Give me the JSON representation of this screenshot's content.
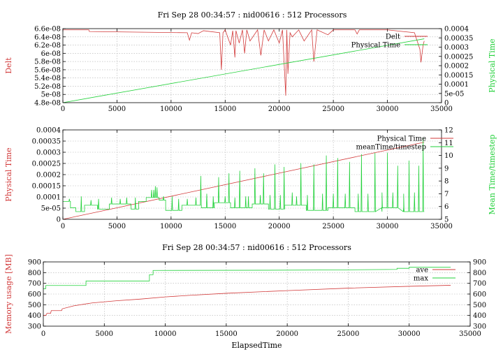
{
  "colors": {
    "red": "#d23a3a",
    "green": "#22d13a",
    "grid": "#b0b0b0"
  },
  "chart_data": [
    {
      "type": "line",
      "title": "Fri Sep 28 00:34:57 : nid00616 : 512 Processors",
      "xlabel": "",
      "ylabel": "Delt",
      "y2label": "Physical Time",
      "xlim": [
        0,
        35000
      ],
      "ylim": [
        4.8e-08,
        6.6e-08
      ],
      "y2lim": [
        0,
        0.0004
      ],
      "xticks": [
        "0",
        "5000",
        "10000",
        "15000",
        "20000",
        "25000",
        "30000",
        "35000"
      ],
      "yticks": [
        "4.8e-08",
        "5e-08",
        "5.2e-08",
        "5.4e-08",
        "5.6e-08",
        "5.8e-08",
        "6e-08",
        "6.2e-08",
        "6.4e-08",
        "6.6e-08"
      ],
      "y2ticks": [
        "0",
        "5e-05",
        "0.0001",
        "0.00015",
        "0.0002",
        "0.00025",
        "0.0003",
        "0.00035",
        "0.0004"
      ],
      "legend_position": "top-right",
      "grid": true,
      "series": [
        {
          "name": "Delt",
          "axis": "left",
          "color": "#d23a3a",
          "x": [
            0,
            2400,
            2450,
            11500,
            11700,
            11900,
            12500,
            13000,
            14500,
            14650,
            14800,
            15000,
            15500,
            15700,
            15900,
            16000,
            16300,
            16600,
            16800,
            17000,
            17300,
            18000,
            18300,
            18600,
            19000,
            19500,
            20000,
            20300,
            20600,
            20700,
            20800,
            21000,
            21200,
            21800,
            22300,
            23000,
            23200,
            23500,
            24500,
            25000,
            27000,
            27200,
            27400,
            30000,
            32500,
            33000,
            33100,
            33200,
            33300,
            33400
          ],
          "y": [
            6.57e-08,
            6.57e-08,
            6.53e-08,
            6.5e-08,
            6.32e-08,
            6.5e-08,
            6.48e-08,
            6.55e-08,
            6.5e-08,
            5.6e-08,
            6.5e-08,
            6.57e-08,
            6.2e-08,
            6.55e-08,
            5.9e-08,
            6.55e-08,
            6.25e-08,
            6.57e-08,
            6e-08,
            6.57e-08,
            6.3e-08,
            6.57e-08,
            5.95e-08,
            6.57e-08,
            6.3e-08,
            6.57e-08,
            6.25e-08,
            6.57e-08,
            4.97e-08,
            6.57e-08,
            5.5e-08,
            6.5e-08,
            6.4e-08,
            6.57e-08,
            6.3e-08,
            6.57e-08,
            5.8e-08,
            6.57e-08,
            6.45e-08,
            6.57e-08,
            6.57e-08,
            6.47e-08,
            6.57e-08,
            6.57e-08,
            6.5e-08,
            6.1e-08,
            5.78e-08,
            6e-08,
            6.2e-08,
            6.3e-08
          ]
        },
        {
          "name": "Physical Time",
          "axis": "right",
          "color": "#22d13a",
          "x": [
            0,
            33400
          ],
          "y": [
            0,
            0.000345
          ]
        }
      ]
    },
    {
      "type": "line",
      "title": "",
      "xlabel": "",
      "ylabel": "Physical Time",
      "y2label": "Mean Time/timestep",
      "xlim": [
        0,
        35000
      ],
      "ylim": [
        0,
        0.0004
      ],
      "y2lim": [
        5,
        12
      ],
      "xticks": [
        "0",
        "5000",
        "10000",
        "15000",
        "20000",
        "25000",
        "30000",
        "35000"
      ],
      "yticks": [
        "0",
        "5e-05",
        "0.0001",
        "0.00015",
        "0.0002",
        "0.00025",
        "0.0003",
        "0.00035",
        "0.0004"
      ],
      "y2ticks": [
        "5",
        "6",
        "7",
        "8",
        "9",
        "10",
        "11",
        "12"
      ],
      "legend_position": "top-right",
      "grid": true,
      "series": [
        {
          "name": "Physical Time",
          "axis": "left",
          "color": "#d23a3a",
          "x": [
            0,
            33400
          ],
          "y": [
            0,
            0.000345
          ]
        },
        {
          "name": "meanTime/timestep",
          "axis": "right",
          "color": "#22d13a",
          "baseline": [
            [
              0,
              6.4
            ],
            [
              700,
              6.4
            ],
            [
              700,
              5.9
            ],
            [
              1200,
              5.9
            ],
            [
              1200,
              5.6
            ],
            [
              2000,
              5.6
            ],
            [
              2000,
              6.1
            ],
            [
              3200,
              6.1
            ],
            [
              3200,
              5.8
            ],
            [
              4300,
              5.8
            ],
            [
              4300,
              6.2
            ],
            [
              6300,
              6.2
            ],
            [
              6300,
              5.8
            ],
            [
              7000,
              5.8
            ],
            [
              7000,
              6.4
            ],
            [
              7700,
              6.4
            ],
            [
              7700,
              6.7
            ],
            [
              8900,
              6.7
            ],
            [
              8900,
              6.5
            ],
            [
              9500,
              6.5
            ],
            [
              9500,
              5.7
            ],
            [
              11000,
              5.7
            ],
            [
              11000,
              6.1
            ],
            [
              12800,
              6.1
            ],
            [
              12800,
              5.9
            ],
            [
              14000,
              5.9
            ],
            [
              14000,
              6.3
            ],
            [
              15500,
              6.3
            ],
            [
              15500,
              5.9
            ],
            [
              17500,
              5.9
            ],
            [
              17500,
              6.2
            ],
            [
              19000,
              6.2
            ],
            [
              19000,
              5.8
            ],
            [
              20500,
              5.8
            ],
            [
              20500,
              6.1
            ],
            [
              22500,
              6.1
            ],
            [
              22500,
              5.7
            ],
            [
              24500,
              5.7
            ],
            [
              24500,
              5.9
            ],
            [
              27000,
              5.9
            ],
            [
              27000,
              5.6
            ],
            [
              29500,
              5.6
            ],
            [
              29500,
              5.9
            ],
            [
              31500,
              5.9
            ],
            [
              31500,
              5.6
            ],
            [
              33400,
              5.6
            ]
          ],
          "spikes": [
            [
              600,
              6.6
            ],
            [
              1700,
              6.8
            ],
            [
              2600,
              6.5
            ],
            [
              3300,
              6.6
            ],
            [
              4500,
              6.7
            ],
            [
              5300,
              6.6
            ],
            [
              5900,
              6.7
            ],
            [
              6700,
              6.7
            ],
            [
              8200,
              7.3
            ],
            [
              8400,
              7.3
            ],
            [
              8550,
              7.6
            ],
            [
              8700,
              7.5
            ],
            [
              9300,
              6.8
            ],
            [
              10100,
              6.8
            ],
            [
              10700,
              6.6
            ],
            [
              11500,
              6.6
            ],
            [
              12300,
              6.7
            ],
            [
              12750,
              8.4
            ],
            [
              13300,
              7.0
            ],
            [
              13900,
              6.8
            ],
            [
              14400,
              8.3
            ],
            [
              15000,
              6.8
            ],
            [
              15350,
              8.6
            ],
            [
              15900,
              6.7
            ],
            [
              16350,
              8.8
            ],
            [
              16900,
              6.8
            ],
            [
              17150,
              6.8
            ],
            [
              17750,
              9.0
            ],
            [
              18250,
              6.9
            ],
            [
              18550,
              8.6
            ],
            [
              19150,
              6.9
            ],
            [
              19600,
              9.3
            ],
            [
              20100,
              6.9
            ],
            [
              20450,
              9.1
            ],
            [
              21200,
              7.1
            ],
            [
              21600,
              6.8
            ],
            [
              22000,
              9.4
            ],
            [
              22600,
              6.9
            ],
            [
              23200,
              9.3
            ],
            [
              24000,
              7.0
            ],
            [
              24350,
              10.0
            ],
            [
              25000,
              7.0
            ],
            [
              25400,
              9.8
            ],
            [
              26100,
              7.0
            ],
            [
              26500,
              9.5
            ],
            [
              27300,
              7.0
            ],
            [
              27600,
              10.1
            ],
            [
              28200,
              7.0
            ],
            [
              28850,
              10.2
            ],
            [
              29500,
              7.1
            ],
            [
              30000,
              10.2
            ],
            [
              30500,
              7.1
            ],
            [
              30950,
              9.2
            ],
            [
              31500,
              7.0
            ],
            [
              32000,
              9.6
            ],
            [
              32500,
              7.1
            ],
            [
              32900,
              9.2
            ],
            [
              33300,
              11.4
            ]
          ]
        }
      ]
    },
    {
      "type": "line",
      "title": "Fri Sep 28 00:34:57 : nid00616 : 512 Processors",
      "xlabel": "ElapsedTime",
      "ylabel": "Memory usage [MB]",
      "xlim": [
        0,
        35000
      ],
      "ylim": [
        300,
        900
      ],
      "y2lim": [
        300,
        900
      ],
      "xticks": [
        "0",
        "5000",
        "10000",
        "15000",
        "20000",
        "25000",
        "30000",
        "35000"
      ],
      "yticks": [
        "300",
        "400",
        "500",
        "600",
        "700",
        "800",
        "900"
      ],
      "y2ticks": [
        "300",
        "400",
        "500",
        "600",
        "700",
        "800",
        "900"
      ],
      "legend_position": "top-right",
      "grid": true,
      "series": [
        {
          "name": "ave",
          "axis": "left",
          "color": "#d23a3a",
          "x": [
            0,
            200,
            300,
            600,
            650,
            1500,
            1550,
            2500,
            4000,
            6000,
            8000,
            10000,
            12000,
            15000,
            20000,
            25000,
            30000,
            33400
          ],
          "y": [
            400,
            400,
            420,
            420,
            445,
            445,
            462,
            490,
            517,
            537,
            553,
            573,
            588,
            607,
            632,
            655,
            672,
            682
          ]
        },
        {
          "name": "max",
          "axis": "left",
          "color": "#22d13a",
          "x": [
            0,
            200,
            200,
            3500,
            3500,
            8700,
            8700,
            9000,
            9000,
            18000,
            24000,
            29000,
            29000,
            30000,
            30000,
            33400
          ],
          "y": [
            650,
            650,
            680,
            680,
            722,
            722,
            780,
            780,
            820,
            822,
            825,
            830,
            840,
            840,
            850,
            850
          ]
        }
      ]
    }
  ]
}
